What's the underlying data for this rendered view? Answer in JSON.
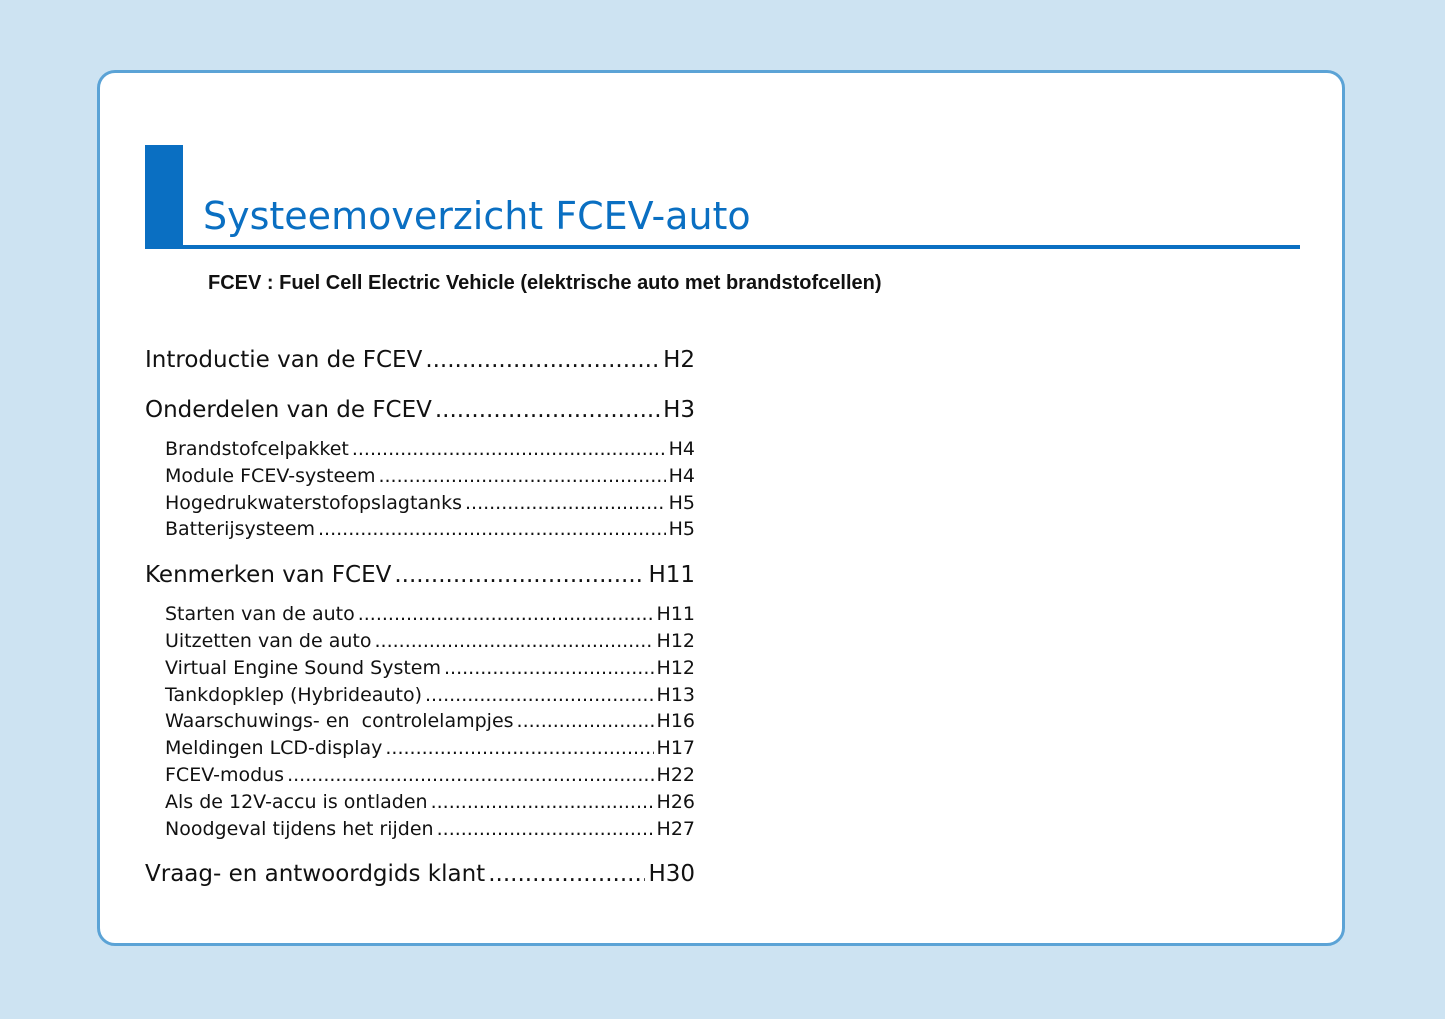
{
  "header": {
    "title": "Systeemoverzicht FCEV-auto",
    "subtitle": "FCEV : Fuel Cell Electric Vehicle (elektrische auto met brandstofcellen)"
  },
  "toc": [
    {
      "label": "Introductie van de FCEV",
      "page": "H2",
      "items": []
    },
    {
      "label": "Onderdelen van de FCEV",
      "page": "H3",
      "items": [
        {
          "label": "Brandstofcelpakket",
          "page": "H4"
        },
        {
          "label": "Module FCEV-systeem",
          "page": "H4"
        },
        {
          "label": "Hogedrukwaterstofopslagtanks",
          "page": "H5"
        },
        {
          "label": "Batterijsysteem",
          "page": "H5"
        }
      ]
    },
    {
      "label": "Kenmerken van FCEV",
      "page": "H11",
      "items": [
        {
          "label": "Starten van de auto",
          "page": "H11"
        },
        {
          "label": "Uitzetten van de auto",
          "page": "H12"
        },
        {
          "label": "Virtual Engine Sound System",
          "page": "H12"
        },
        {
          "label": "Tankdopklep (Hybrideauto)",
          "page": "H13"
        },
        {
          "label": "Waarschuwings- en  controlelampjes",
          "page": "H16"
        },
        {
          "label": "Meldingen LCD-display",
          "page": "H17"
        },
        {
          "label": "FCEV-modus",
          "page": "H22"
        },
        {
          "label": "Als de 12V-accu is ontladen",
          "page": "H26"
        },
        {
          "label": "Noodgeval tijdens het rijden",
          "page": "H27"
        }
      ]
    },
    {
      "label": "Vraag- en antwoordgids klant",
      "page": "H30",
      "items": []
    }
  ]
}
